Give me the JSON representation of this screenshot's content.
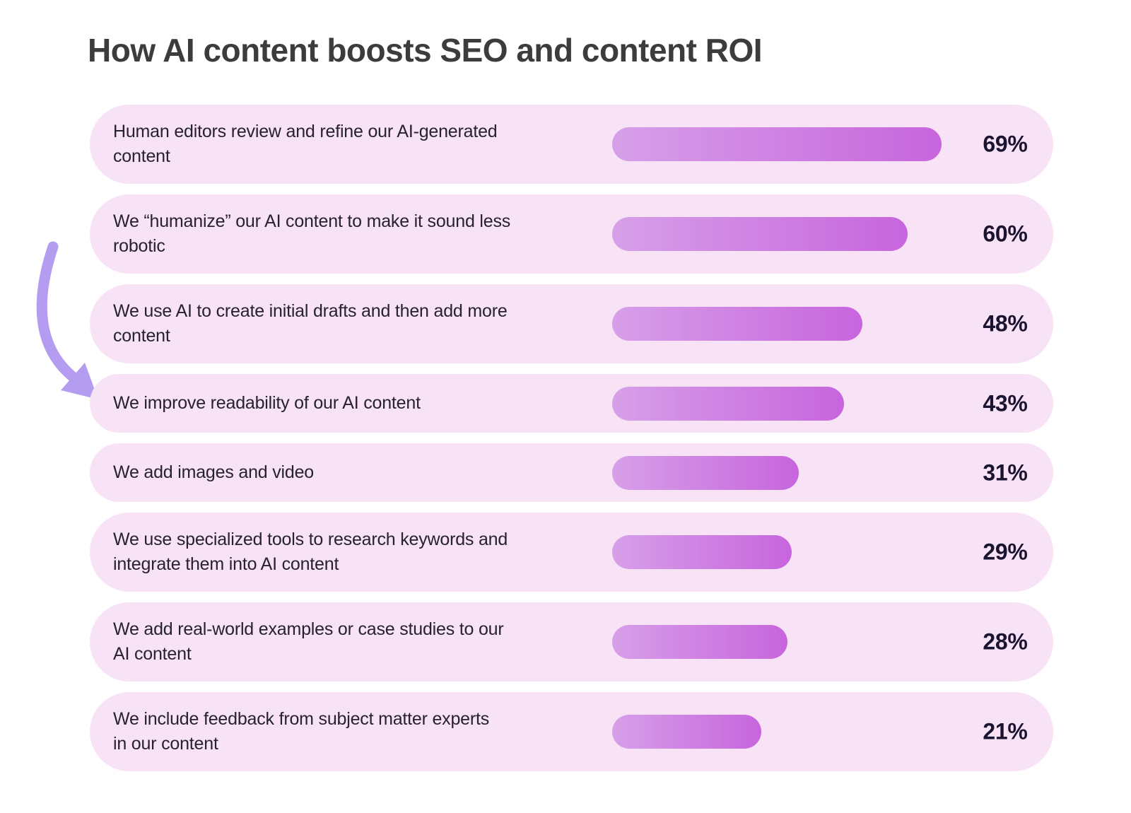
{
  "title": "How AI content boosts SEO and content ROI",
  "chart_data": {
    "type": "bar",
    "orientation": "horizontal",
    "title": "How AI content boosts SEO and content ROI",
    "value_unit": "%",
    "value_range": [
      0,
      100
    ],
    "legend": false,
    "grid": false,
    "categories": [
      "Human editors review and refine our AI-generated content",
      "We “humanize” our AI content to make it sound less robotic",
      "We use AI to create initial drafts and then add more content",
      "We improve readability of our AI content",
      "We add images and video",
      "We use specialized tools to research keywords and integrate them into AI content",
      "We add real-world examples or case studies to our AI content",
      "We include feedback from subject matter experts in our content"
    ],
    "values": [
      69,
      60,
      48,
      43,
      31,
      29,
      28,
      21
    ],
    "rows": [
      {
        "label": "Human editors review and refine our AI-generated\ncontent",
        "value": 69,
        "value_label": "69%"
      },
      {
        "label": "We “humanize” our AI content to make it sound less\nrobotic",
        "value": 60,
        "value_label": "60%"
      },
      {
        "label": "We use AI to create initial drafts and then add more\ncontent",
        "value": 48,
        "value_label": "48%"
      },
      {
        "label": "We improve readability of our AI content",
        "value": 43,
        "value_label": "43%"
      },
      {
        "label": "We add images and video",
        "value": 31,
        "value_label": "31%"
      },
      {
        "label": "We use specialized tools to research keywords and\nintegrate them into AI content",
        "value": 29,
        "value_label": "29%"
      },
      {
        "label": "We add real-world examples or case studies to our\nAI content",
        "value": 28,
        "value_label": "28%"
      },
      {
        "label": "We include feedback from subject matter experts\nin our content",
        "value": 21,
        "value_label": "21%"
      }
    ],
    "colors": {
      "row_background": "#f8e3f6",
      "bar_gradient_start": "#d79fe9",
      "bar_gradient_end": "#c765dd",
      "label_text": "#272130",
      "value_text": "#1b1430",
      "title_text": "#3c3c3e"
    }
  },
  "annotation_arrow": {
    "color": "#b49cf1",
    "points_to": "We improve readability of our AI content"
  }
}
